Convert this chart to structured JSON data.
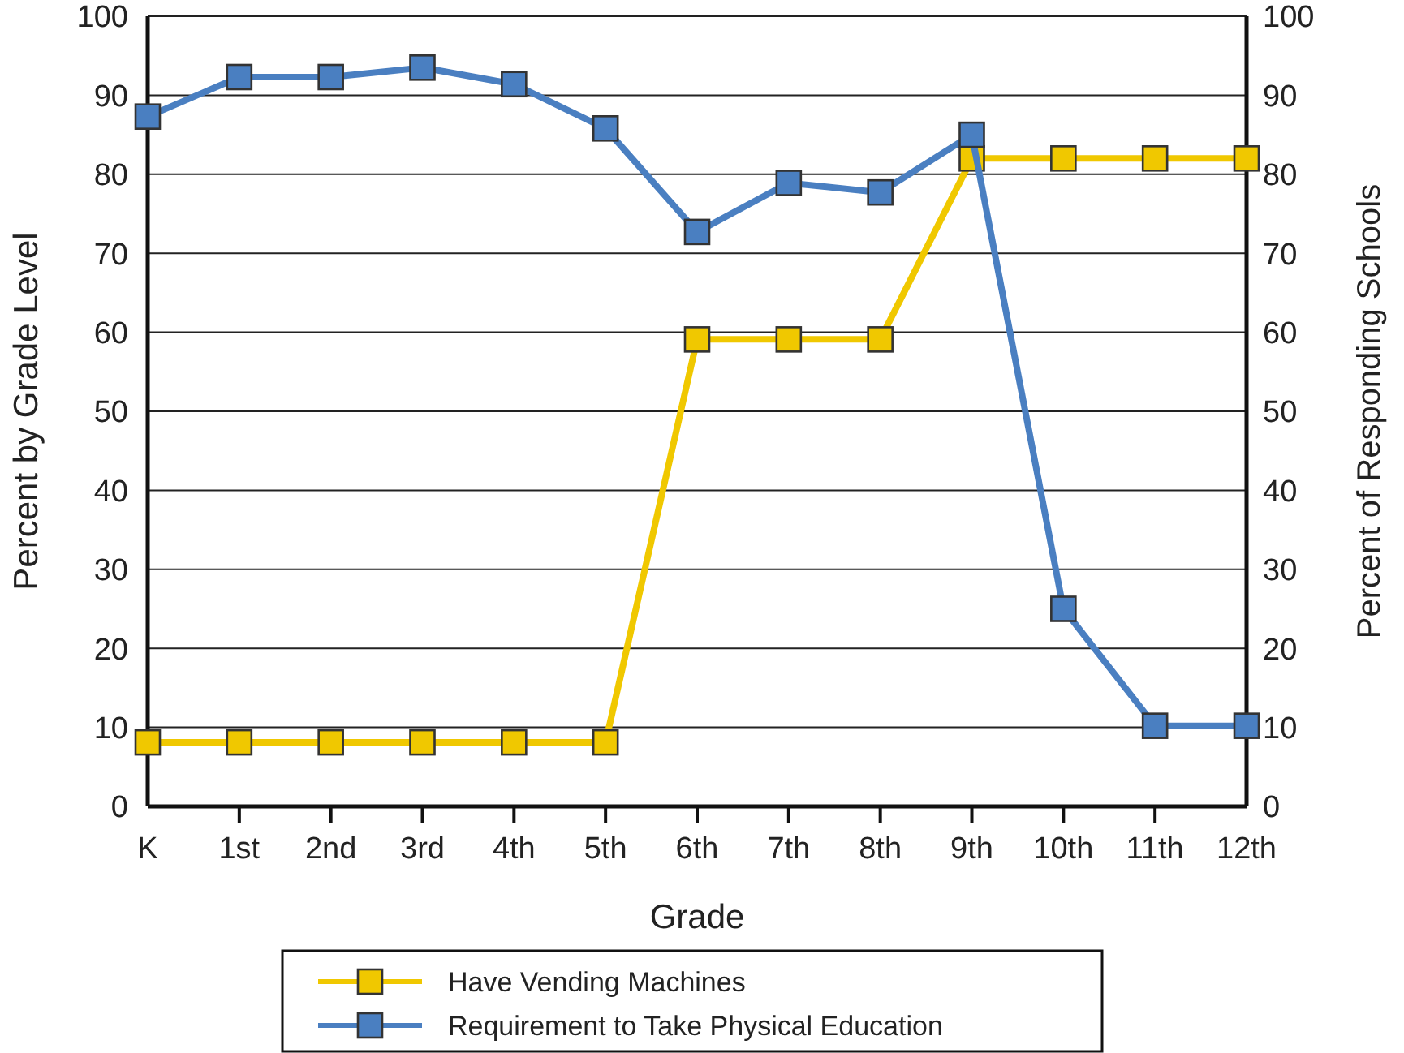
{
  "chart_data": {
    "type": "line",
    "xlabel": "Grade",
    "ylabel": "Percent by Grade Level",
    "y2label": "Percent of Responding Schools",
    "categories": [
      "K",
      "1st",
      "2nd",
      "3rd",
      "4th",
      "5th",
      "6th",
      "7th",
      "8th",
      "9th",
      "10th",
      "11th",
      "12th"
    ],
    "series": [
      {
        "name": "Have Vending Machines",
        "color": "#f0c800",
        "values": [
          8.1,
          8.1,
          8.1,
          8.1,
          8.1,
          8.1,
          59.1,
          59.1,
          59.1,
          82,
          82,
          82,
          82
        ]
      },
      {
        "name": "Requirement to Take Physical Education",
        "color": "#4a7fc1",
        "values": [
          87.3,
          92.3,
          92.3,
          93.5,
          91.4,
          85.8,
          72.7,
          78.9,
          77.7,
          85,
          25,
          10.2,
          10.2
        ]
      }
    ],
    "ylim": [
      0,
      100
    ],
    "yticks": [
      0,
      10,
      20,
      30,
      40,
      50,
      60,
      70,
      80,
      90,
      100
    ],
    "y2lim": [
      0,
      100
    ],
    "y2ticks": [
      0,
      10,
      20,
      30,
      40,
      50,
      60,
      70,
      80,
      90,
      100
    ],
    "grid": "y",
    "legend": "bottom",
    "marker": "square",
    "line_style": "solid"
  }
}
